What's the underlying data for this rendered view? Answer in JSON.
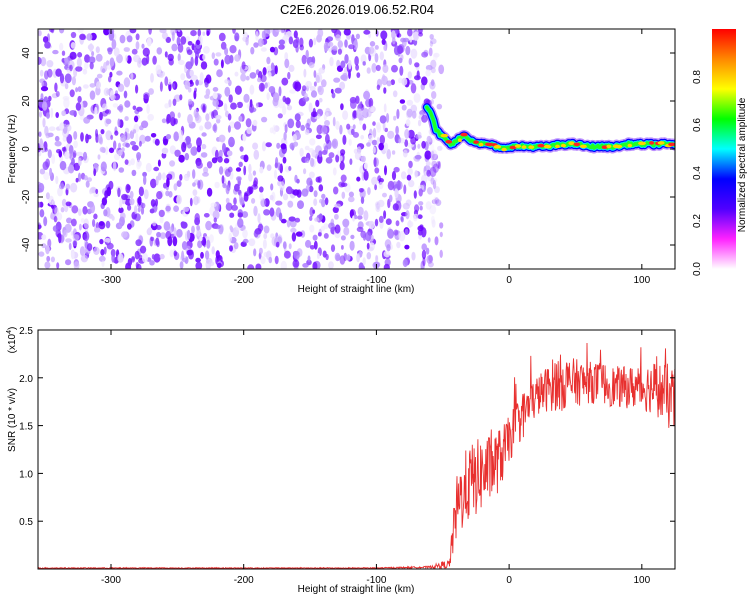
{
  "title": "C2E6.2026.019.06.52.R04",
  "chart_data": [
    {
      "type": "heatmap",
      "title": "C2E6.2026.019.06.52.R04",
      "xlabel": "Height of straight line (km)",
      "ylabel": "Frequency (Hz)",
      "xlim": [
        -355,
        125
      ],
      "ylim": [
        -50,
        50
      ],
      "xticks": [
        -300,
        -200,
        -100,
        0,
        100
      ],
      "yticks": [
        -40,
        -20,
        0,
        20,
        40
      ],
      "noise_region_x": [
        -355,
        -60
      ],
      "ridge": {
        "x": [
          -62,
          -58,
          -55,
          -52,
          -48,
          -44,
          -40,
          -35,
          -30,
          -25,
          -20,
          -15,
          -10,
          -5,
          0,
          10,
          20,
          30,
          40,
          50,
          60,
          70,
          80,
          90,
          100,
          110,
          120,
          125
        ],
        "y": [
          18,
          14,
          8,
          6,
          4,
          2,
          3,
          6,
          4,
          3,
          2,
          2,
          1,
          0,
          1,
          1,
          1,
          1,
          2,
          2,
          1,
          1,
          1,
          2,
          2,
          2,
          2,
          2
        ],
        "peak_amplitude": 1.0
      },
      "colorbar": {
        "label": "Normalized spectral amplitude",
        "range": [
          0,
          1
        ],
        "ticks": [
          "0.0",
          "0.2",
          "0.4",
          "0.6",
          "0.8"
        ],
        "colors": [
          "#ffffff",
          "#ff22ff",
          "#5000ff",
          "#0000ff",
          "#00ffff",
          "#00ff00",
          "#ffff00",
          "#ff8800",
          "#ff0000"
        ]
      },
      "grid": false
    },
    {
      "type": "line",
      "xlabel": "Height of straight line (km)",
      "ylabel": "SNR (10 * v/v)",
      "y_multiplier": "(x10",
      "y_multiplier_exponent": "4",
      "y_multiplier_close": ")",
      "xlim": [
        -355,
        125
      ],
      "ylim": [
        0,
        2.5
      ],
      "xticks": [
        -300,
        -200,
        -100,
        0,
        100
      ],
      "yticks": [
        0.5,
        1.0,
        1.5,
        2.0,
        2.5
      ],
      "ytick_labels": [
        "0.5",
        "1.0",
        "1.5",
        "2.0",
        "2.5"
      ],
      "series": [
        {
          "color": "#e8302f",
          "x": [
            -355,
            -300,
            -250,
            -200,
            -150,
            -100,
            -60,
            -45,
            -40,
            -35,
            -30,
            -25,
            -20,
            -15,
            -10,
            -5,
            0,
            5,
            10,
            15,
            20,
            25,
            30,
            35,
            40,
            50,
            60,
            70,
            80,
            90,
            100,
            110,
            120,
            125
          ],
          "y": [
            0.01,
            0.01,
            0.01,
            0.01,
            0.01,
            0.01,
            0.02,
            0.05,
            0.6,
            0.8,
            0.9,
            0.95,
            1.0,
            1.05,
            1.1,
            1.2,
            1.35,
            1.5,
            1.6,
            1.7,
            1.8,
            1.85,
            1.9,
            1.95,
            1.95,
            1.95,
            1.95,
            1.95,
            1.9,
            1.9,
            1.9,
            1.9,
            1.8,
            1.75
          ],
          "noise_amplitude": [
            0.005,
            0.005,
            0.005,
            0.005,
            0.005,
            0.005,
            0.01,
            0.05,
            0.35,
            0.4,
            0.4,
            0.4,
            0.4,
            0.35,
            0.35,
            0.3,
            0.25,
            0.25,
            0.25,
            0.25,
            0.22,
            0.22,
            0.25,
            0.3,
            0.3,
            0.25,
            0.22,
            0.22,
            0.22,
            0.22,
            0.25,
            0.28,
            0.35,
            0.35
          ]
        }
      ],
      "grid": false
    }
  ]
}
